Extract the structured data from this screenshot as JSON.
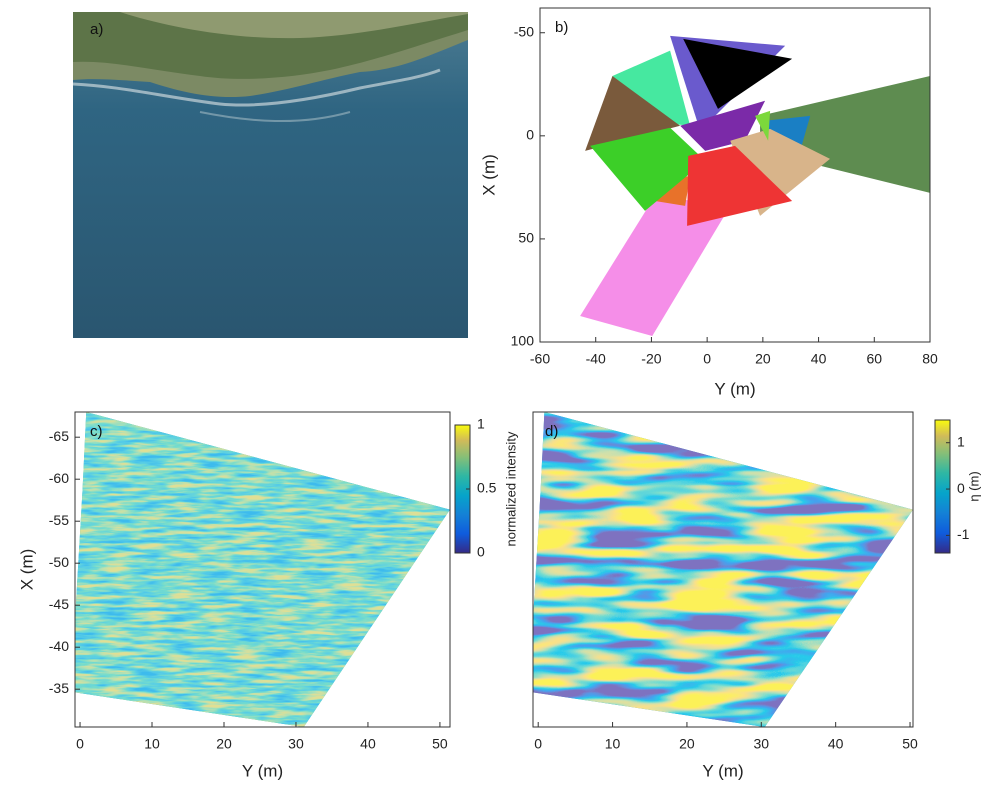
{
  "chart_data": [
    {
      "type": "image",
      "label": "a)"
    },
    {
      "type": "polygons",
      "label": "b)",
      "xlabel": "Y (m)",
      "ylabel": "X (m)",
      "xlim": [
        -60,
        80
      ],
      "xticks": [
        -60,
        -40,
        -20,
        0,
        20,
        40,
        60,
        80
      ],
      "ylim": [
        -62,
        100
      ],
      "yticks": [
        -50,
        0,
        50,
        100
      ],
      "y_reversed": true,
      "series": [
        {
          "color": "#f58ee8",
          "x": [
            -45.6,
            -19.7,
            8.3,
            -18.7
          ],
          "y": [
            87.4,
            97.1,
            34,
            29.1
          ]
        },
        {
          "color": "#5e8c50",
          "x": [
            19,
            80,
            80,
            19
          ],
          "y": [
            -9.7,
            -29,
            27.7,
            7.3
          ]
        },
        {
          "color": "#46e8a0",
          "x": [
            -34,
            -13.3,
            -6.1,
            -24
          ],
          "y": [
            -29,
            -41.3,
            -4.9,
            -7.3
          ]
        },
        {
          "color": "#6a5acd",
          "x": [
            -13.3,
            28,
            -2.5
          ],
          "y": [
            -48.5,
            -43.7,
            -2.4
          ]
        },
        {
          "color": "#000000",
          "x": [
            -8.6,
            30.5,
            3.9
          ],
          "y": [
            -47,
            -37.4,
            -13.1
          ]
        },
        {
          "color": "#7a5a3c",
          "x": [
            -43.8,
            -34,
            -9.7
          ],
          "y": [
            7.3,
            -29,
            -4.9
          ]
        },
        {
          "color": "#7b2aa8",
          "x": [
            -9.7,
            20.8,
            13.6,
            -0.7
          ],
          "y": [
            -4.9,
            -17,
            2.4,
            7.3
          ]
        },
        {
          "color": "#1a7fc4",
          "x": [
            20.8,
            37,
            33.4,
            19
          ],
          "y": [
            -7.3,
            -9.7,
            7.3,
            4.9
          ]
        },
        {
          "color": "#d8b48a",
          "x": [
            8.3,
            22.6,
            44.1,
            19
          ],
          "y": [
            2.4,
            -3.4,
            11.2,
            38.8
          ]
        },
        {
          "color": "#e8722a",
          "x": [
            -16.9,
            -6.1,
            -7.9,
            -18.7
          ],
          "y": [
            21.8,
            19.4,
            34,
            31.6
          ]
        },
        {
          "color": "#3ccf28",
          "x": [
            -42,
            -13.3,
            -0.7,
            -22.3
          ],
          "y": [
            4.9,
            -3.9,
            12.1,
            36.4
          ]
        },
        {
          "color": "#ee3434",
          "x": [
            -6.8,
            10,
            30.5,
            -7.2
          ],
          "y": [
            9.7,
            4.9,
            31.6,
            43.7
          ]
        },
        {
          "color": "#7cd83c",
          "x": [
            17.2,
            22.6,
            21.9
          ],
          "y": [
            -9.7,
            -12.1,
            2.4
          ]
        }
      ]
    },
    {
      "type": "heatmap",
      "label": "c)",
      "xlabel": "Y (m)",
      "ylabel": "X (m)",
      "xlim": [
        -0.7,
        51.4
      ],
      "xticks": [
        0,
        10,
        20,
        30,
        40,
        50
      ],
      "ylim": [
        -68,
        -30.5
      ],
      "yticks": [
        -65,
        -60,
        -55,
        -50,
        -45,
        -40,
        -35
      ],
      "y_reversed": true,
      "colorbar": {
        "label": "normalized intensity",
        "lim": [
          0,
          1
        ],
        "ticks": [
          0,
          0.5,
          1
        ]
      }
    },
    {
      "type": "heatmap",
      "label": "d)",
      "xlabel": "Y (m)",
      "xlim": [
        -0.7,
        50.4
      ],
      "xticks": [
        0,
        10,
        20,
        30,
        40,
        50
      ],
      "colorbar": {
        "label": "η (m)",
        "lim": [
          -1.38,
          1.49
        ],
        "ticks": [
          -1,
          0,
          1
        ]
      }
    }
  ]
}
